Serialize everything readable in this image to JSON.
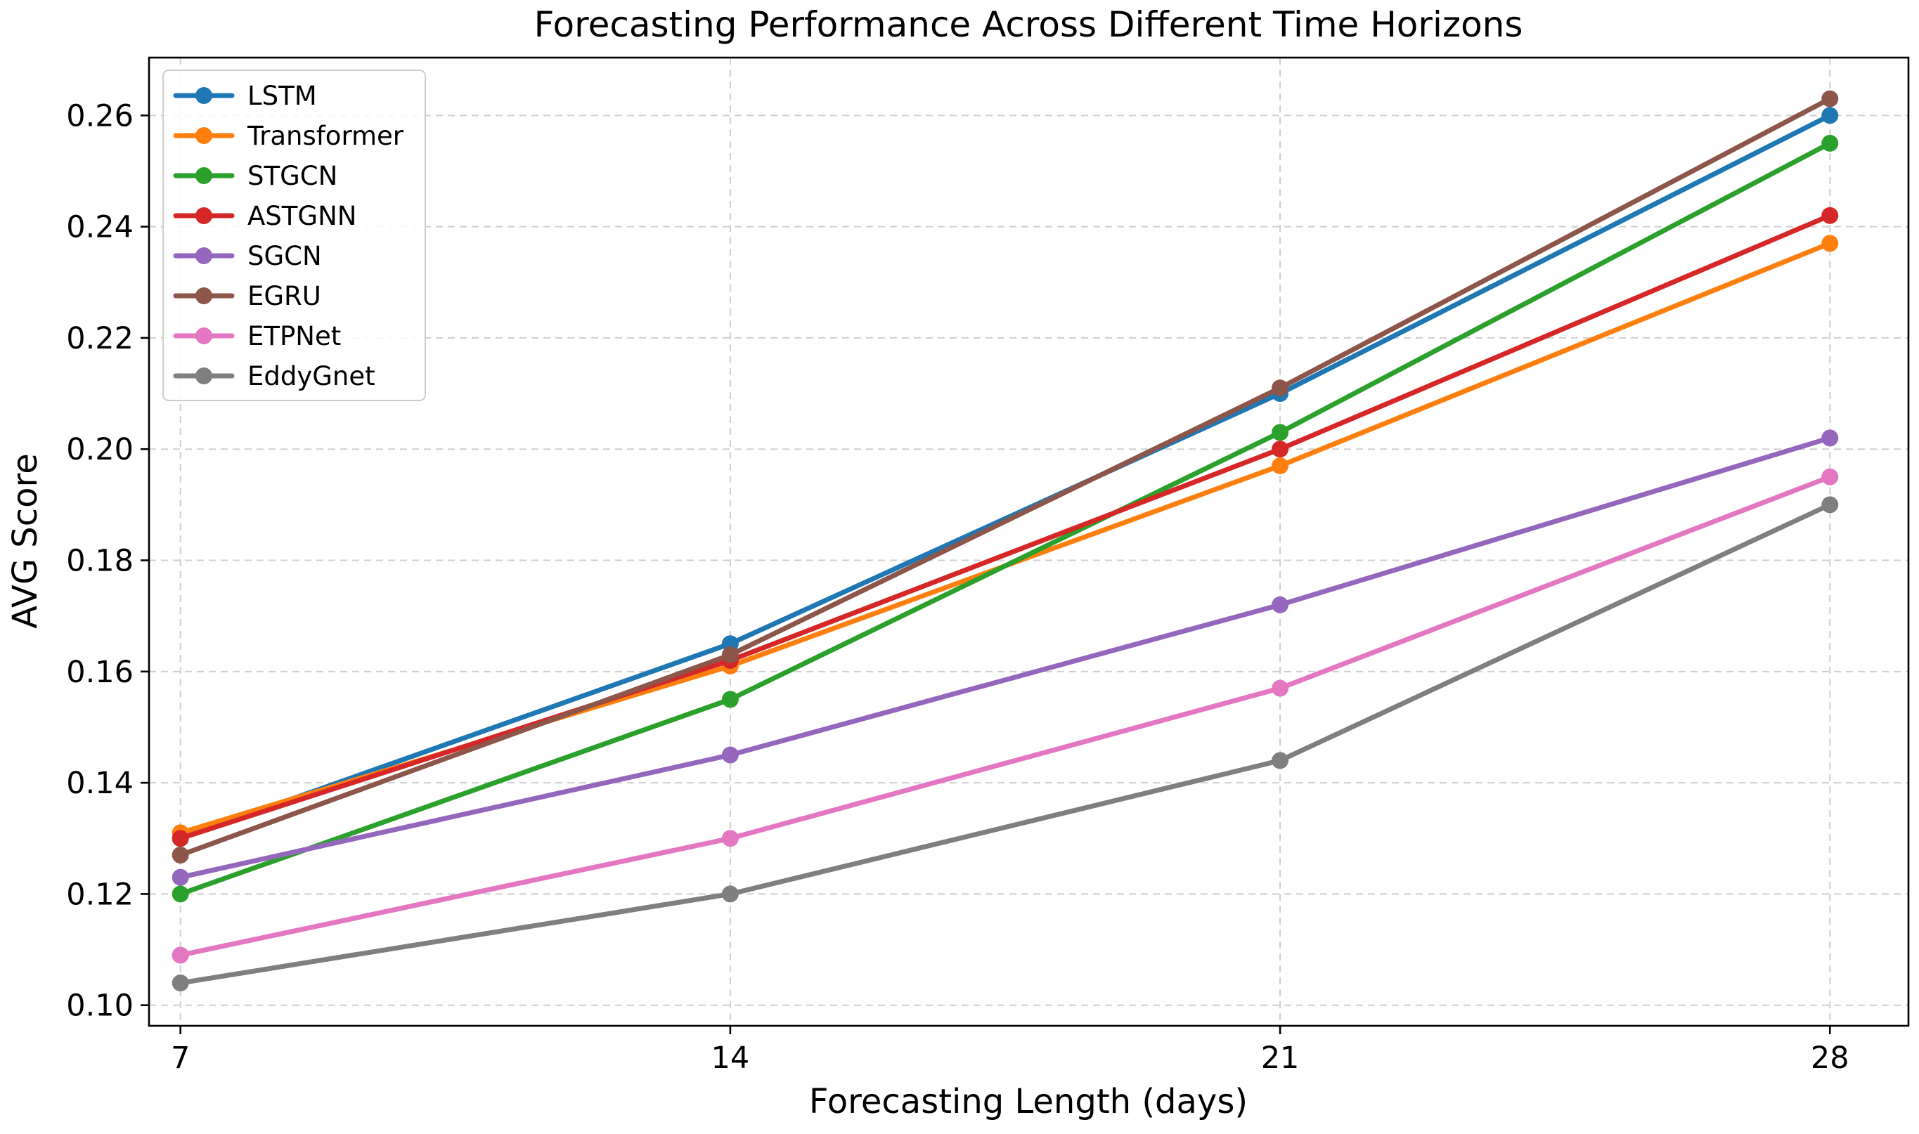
{
  "chart_data": {
    "type": "line",
    "title": "Forecasting Performance Across Different Time Horizons",
    "xlabel": "Forecasting Length (days)",
    "ylabel": "AVG Score",
    "x": [
      7,
      14,
      21,
      28
    ],
    "x_tick_labels": [
      "7",
      "14",
      "21",
      "28"
    ],
    "y_ticks": [
      0.1,
      0.12,
      0.14,
      0.16,
      0.18,
      0.2,
      0.22,
      0.24,
      0.26
    ],
    "y_tick_labels": [
      "0.10",
      "0.12",
      "0.14",
      "0.16",
      "0.18",
      "0.20",
      "0.22",
      "0.24",
      "0.26"
    ],
    "xlim": [
      6.6,
      29.0
    ],
    "ylim": [
      0.0963,
      0.2704
    ],
    "grid": true,
    "legend_position": "top-left",
    "series": [
      {
        "name": "LSTM",
        "color": "#1f77b4",
        "values": [
          0.13,
          0.165,
          0.21,
          0.26
        ]
      },
      {
        "name": "Transformer",
        "color": "#ff7f0e",
        "values": [
          0.131,
          0.161,
          0.197,
          0.237
        ]
      },
      {
        "name": "STGCN",
        "color": "#2ca02c",
        "values": [
          0.12,
          0.155,
          0.203,
          0.255
        ]
      },
      {
        "name": "ASTGNN",
        "color": "#d62728",
        "values": [
          0.13,
          0.162,
          0.2,
          0.242
        ]
      },
      {
        "name": "SGCN",
        "color": "#9467bd",
        "values": [
          0.123,
          0.145,
          0.172,
          0.202
        ]
      },
      {
        "name": "EGRU",
        "color": "#8c564b",
        "values": [
          0.127,
          0.163,
          0.211,
          0.263
        ]
      },
      {
        "name": "ETPNet",
        "color": "#e377c2",
        "values": [
          0.109,
          0.13,
          0.157,
          0.195
        ]
      },
      {
        "name": "EddyGnet",
        "color": "#7f7f7f",
        "values": [
          0.104,
          0.12,
          0.144,
          0.19
        ]
      }
    ]
  }
}
